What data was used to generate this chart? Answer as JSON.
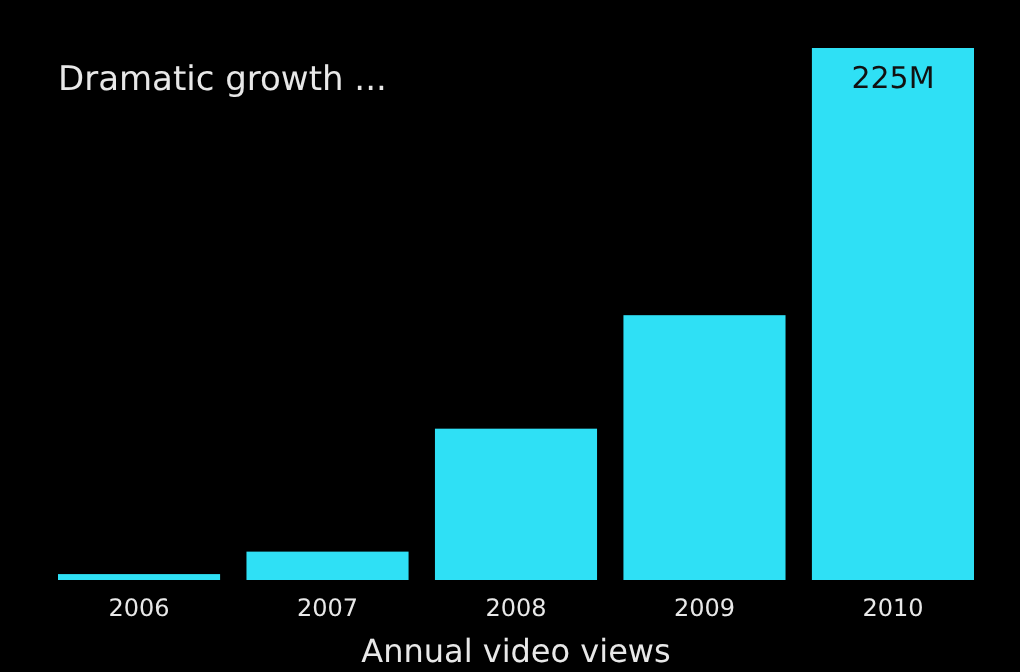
{
  "chart_data": {
    "type": "bar",
    "title": "Dramatic growth ...",
    "xlabel": "Annual video views",
    "categories": [
      "2006",
      "2007",
      "2008",
      "2009",
      "2010"
    ],
    "values": [
      2.5,
      12,
      64,
      112,
      225
    ],
    "value_labels": [
      null,
      null,
      null,
      null,
      "225M"
    ],
    "color": "#2fe0f5"
  }
}
